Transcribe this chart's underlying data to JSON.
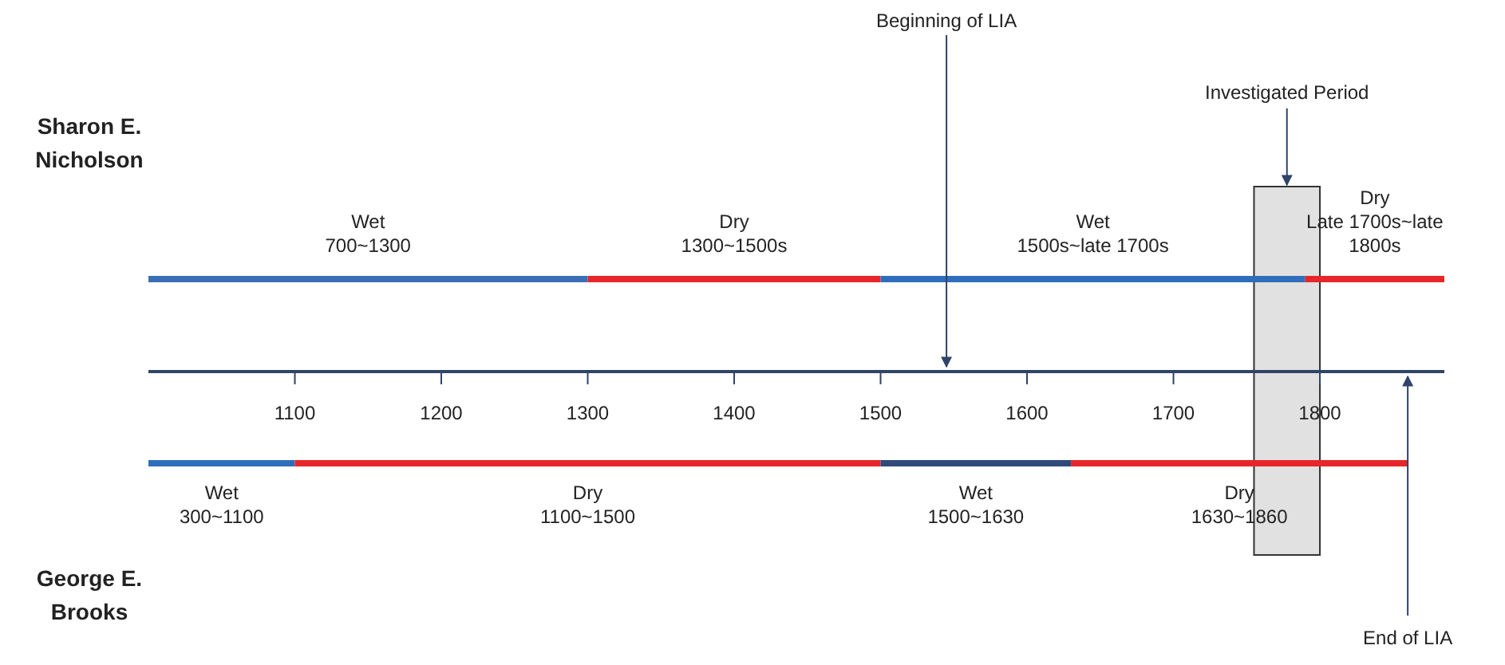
{
  "chart_data": {
    "type": "bar",
    "orientation": "horizontal",
    "categories": [
      "Sharon E. Nicholson",
      "George E. Brooks"
    ],
    "series": [
      {
        "base": [
          1000,
          1000
        ],
        "values": [
          300,
          100
        ],
        "colors": [
          "#3a6fb5",
          "#2f6eba"
        ]
      },
      {
        "base": [
          1300,
          1100
        ],
        "values": [
          200,
          400
        ],
        "colors": [
          "#e8262a",
          "#e8262a"
        ]
      },
      {
        "base": [
          1500,
          1500
        ],
        "values": [
          290,
          130
        ],
        "colors": [
          "#2f6eba",
          "#2f4a7c"
        ]
      },
      {
        "base": [
          1790,
          1630
        ],
        "values": [
          95,
          230
        ],
        "colors": [
          "#e8262a",
          "#e8262a"
        ]
      }
    ],
    "xlim": [
      1000,
      1885
    ],
    "xticks": [
      1100,
      1200,
      1300,
      1400,
      1500,
      1600,
      1700,
      1800
    ],
    "bands": [
      {
        "axis": "x",
        "from": 1755,
        "to": 1800,
        "label": "Investigated Period",
        "color": "#d9d9d9"
      }
    ],
    "ref_lines": [
      {
        "axis": "x",
        "value": 1545,
        "label": "Beginning of LIA",
        "color": "#2f4468"
      },
      {
        "axis": "x",
        "value": 1860,
        "label": "End of LIA",
        "color": "#2f4468"
      }
    ],
    "annotations": [
      "Wet\n700~1300",
      "Dry\n1300~1500s",
      "Wet\n1500s~late 1700s",
      "Dry\nLate 1700s~late\n1800s",
      "Wet\n300~1100",
      "Dry\n1100~1500",
      "Wet\n1500~1630",
      "Dry\n1630~1860"
    ]
  }
}
